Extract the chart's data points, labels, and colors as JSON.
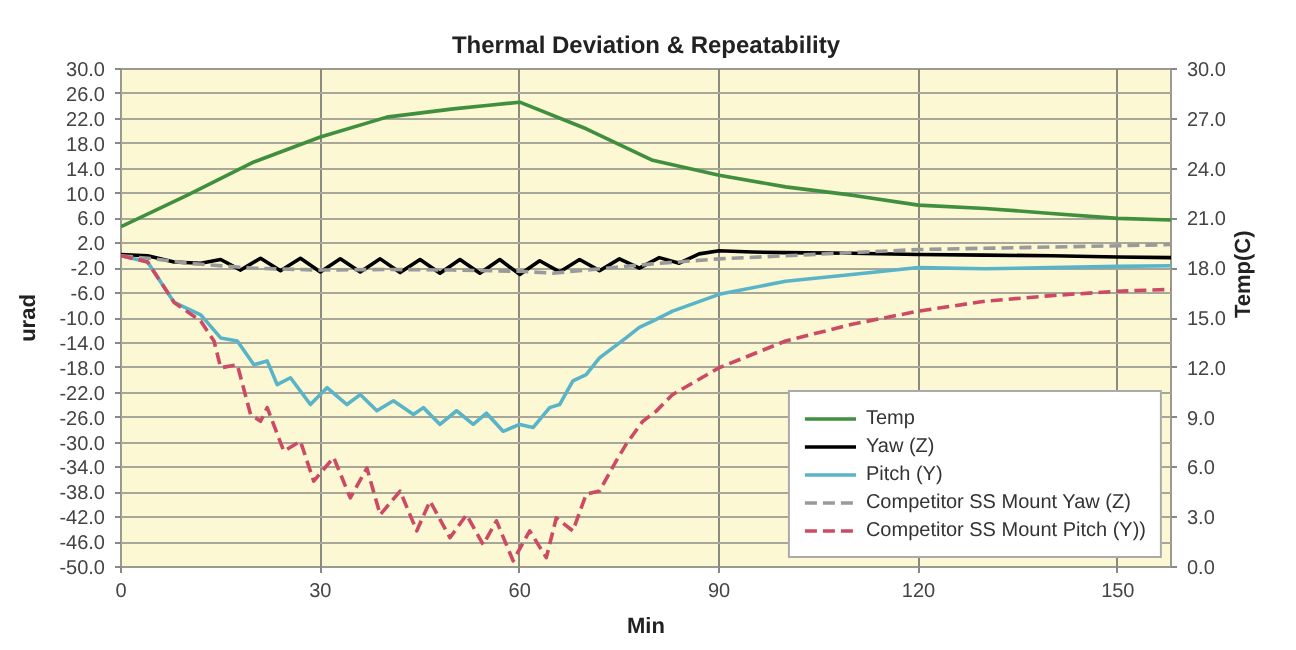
{
  "chart_data": {
    "type": "line",
    "title": "Thermal Deviation & Repeatability",
    "xlabel": "Min",
    "ylabel": "urad",
    "y2label": "Temp(C)",
    "xlim": [
      0,
      158
    ],
    "xticks": [
      0,
      30,
      60,
      90,
      120,
      150
    ],
    "ylim": [
      -50,
      30
    ],
    "yticks": [
      {
        "value": -50,
        "label": "-50.0"
      },
      {
        "value": -46,
        "label": "-46.0"
      },
      {
        "value": -42,
        "label": "-42.0"
      },
      {
        "value": -38,
        "label": "-38.0"
      },
      {
        "value": -34,
        "label": "-34.0"
      },
      {
        "value": -30,
        "label": "-30.0"
      },
      {
        "value": -26,
        "label": "-26.0"
      },
      {
        "value": -22,
        "label": "-22.0"
      },
      {
        "value": -18,
        "label": "-18.0"
      },
      {
        "value": -14,
        "label": "-14.0"
      },
      {
        "value": -10,
        "label": "-10.0"
      },
      {
        "value": -6,
        "label": "-6.0"
      },
      {
        "value": -2,
        "label": "-2.0"
      },
      {
        "value": 2,
        "label": "2.0"
      },
      {
        "value": 6,
        "label": "6.0"
      },
      {
        "value": 10,
        "label": "10.0"
      },
      {
        "value": 14,
        "label": "14.0"
      },
      {
        "value": 18,
        "label": "18.0"
      },
      {
        "value": 22,
        "label": "22.0"
      },
      {
        "value": 26,
        "label": "26.0"
      },
      {
        "value": 30,
        "label": "30.0"
      }
    ],
    "y2lim": [
      0,
      30
    ],
    "y2ticks": [
      {
        "value": 0,
        "label": "0.0"
      },
      {
        "value": 3,
        "label": "3.0"
      },
      {
        "value": 6,
        "label": "6.0"
      },
      {
        "value": 9,
        "label": "9.0"
      },
      {
        "value": 12,
        "label": "12.0"
      },
      {
        "value": 15,
        "label": "15.0"
      },
      {
        "value": 18,
        "label": "18.0"
      },
      {
        "value": 21,
        "label": "21.0"
      },
      {
        "value": 24,
        "label": "24.0"
      },
      {
        "value": 27,
        "label": "27.0"
      },
      {
        "value": 30,
        "label": "30.0"
      }
    ],
    "grid": true,
    "legend": "bottom right",
    "series": [
      {
        "name": "Temp",
        "color": "#3f8f3f",
        "axis": "y2",
        "line_style": "solid",
        "x": [
          0,
          10,
          20,
          30,
          40,
          50,
          55,
          60,
          70,
          80,
          90,
          100,
          110,
          120,
          130,
          140,
          150,
          158
        ],
        "values": [
          20.5,
          22.4,
          24.4,
          25.9,
          27.1,
          27.6,
          27.8,
          28.0,
          26.4,
          24.5,
          23.6,
          22.9,
          22.4,
          21.8,
          21.6,
          21.3,
          21.0,
          20.9
        ]
      },
      {
        "name": "Yaw (Z)",
        "color": "#000000",
        "line_style": "solid",
        "x": [
          0,
          4,
          8,
          12,
          15,
          18,
          21,
          24,
          27,
          30,
          33,
          36,
          39,
          42,
          45,
          48,
          51,
          54,
          57,
          60,
          63,
          66,
          69,
          72,
          75,
          78,
          81,
          84,
          87,
          90,
          95,
          100,
          110,
          120,
          130,
          140,
          150,
          158
        ],
        "values": [
          0.2,
          0,
          -1,
          -1.2,
          -0.6,
          -2.3,
          -0.4,
          -2.4,
          -0.4,
          -2.6,
          -0.5,
          -2.6,
          -0.5,
          -2.7,
          -0.6,
          -2.8,
          -0.6,
          -2.8,
          -0.6,
          -3.0,
          -0.8,
          -2.6,
          -0.6,
          -2.4,
          -0.5,
          -2.0,
          -0.3,
          -1.2,
          0.3,
          0.8,
          0.6,
          0.5,
          0.4,
          0.2,
          0.1,
          0,
          -0.2,
          -0.3
        ]
      },
      {
        "name": "Pitch (Y)",
        "color": "#5ab4c8",
        "line_style": "solid",
        "x": [
          0,
          4,
          8,
          12,
          15,
          17.5,
          20,
          22,
          23.5,
          25.5,
          28.5,
          31,
          34,
          36,
          38.5,
          41,
          44,
          45.5,
          48,
          50.5,
          53,
          55,
          57.5,
          60,
          62,
          64.5,
          66,
          68,
          70,
          72,
          74,
          76,
          78,
          80,
          83,
          90,
          100,
          110,
          120,
          130,
          140,
          150,
          158
        ],
        "values": [
          0,
          -1,
          -7.5,
          -9.5,
          -13.2,
          -13.7,
          -17.5,
          -16.9,
          -20.7,
          -19.6,
          -23.9,
          -21.2,
          -23.9,
          -22.3,
          -24.9,
          -23.3,
          -25.5,
          -24.4,
          -27.1,
          -24.9,
          -27.1,
          -25.3,
          -28.2,
          -27.1,
          -27.6,
          -24.4,
          -23.9,
          -20.1,
          -19.1,
          -16.4,
          -14.8,
          -13.2,
          -11.5,
          -10.5,
          -8.9,
          -6.2,
          -4.1,
          -3.0,
          -1.9,
          -2.1,
          -1.9,
          -1.7,
          -1.6
        ]
      },
      {
        "name": "Competitor SS Mount Yaw (Z)",
        "color": "#9a9a9a",
        "line_style": "dashed",
        "x": [
          0,
          5,
          10,
          20,
          30,
          40,
          50,
          60,
          65,
          70,
          80,
          90,
          100,
          110,
          120,
          130,
          140,
          150,
          158
        ],
        "values": [
          0,
          -0.5,
          -1.2,
          -2,
          -2.3,
          -2.2,
          -2.3,
          -2.5,
          -2.8,
          -2.3,
          -1.3,
          -0.5,
          0,
          0.5,
          1.0,
          1.2,
          1.4,
          1.6,
          1.8
        ]
      },
      {
        "name": "Competitor SS Mount Pitch (Y))",
        "color": "#cc4a64",
        "line_style": "dashed",
        "x": [
          0,
          4,
          8,
          12,
          14,
          15,
          17.5,
          19.5,
          21,
          22,
          24.5,
          27,
          29,
          32,
          34.5,
          37,
          39,
          42,
          44.5,
          46.5,
          49.5,
          52,
          54.5,
          56.5,
          59,
          61.5,
          64,
          65.5,
          68,
          70,
          72,
          74.5,
          76,
          78.5,
          80.5,
          83,
          90,
          100,
          110,
          120,
          130,
          140,
          150,
          158
        ],
        "values": [
          0,
          -1,
          -7.5,
          -10.5,
          -13.7,
          -18,
          -17.5,
          -25.5,
          -26.6,
          -24.4,
          -31.4,
          -29.8,
          -36.2,
          -32.4,
          -38.9,
          -34.1,
          -41.6,
          -37.8,
          -44.2,
          -39.4,
          -45.3,
          -41.6,
          -46.4,
          -42.6,
          -49.0,
          -44.2,
          -48.5,
          -42.1,
          -44.2,
          -38.3,
          -37.8,
          -33,
          -30.3,
          -26.6,
          -25,
          -22.3,
          -18,
          -13.7,
          -11,
          -8.9,
          -7.3,
          -6.4,
          -5.7,
          -5.4
        ]
      }
    ]
  }
}
